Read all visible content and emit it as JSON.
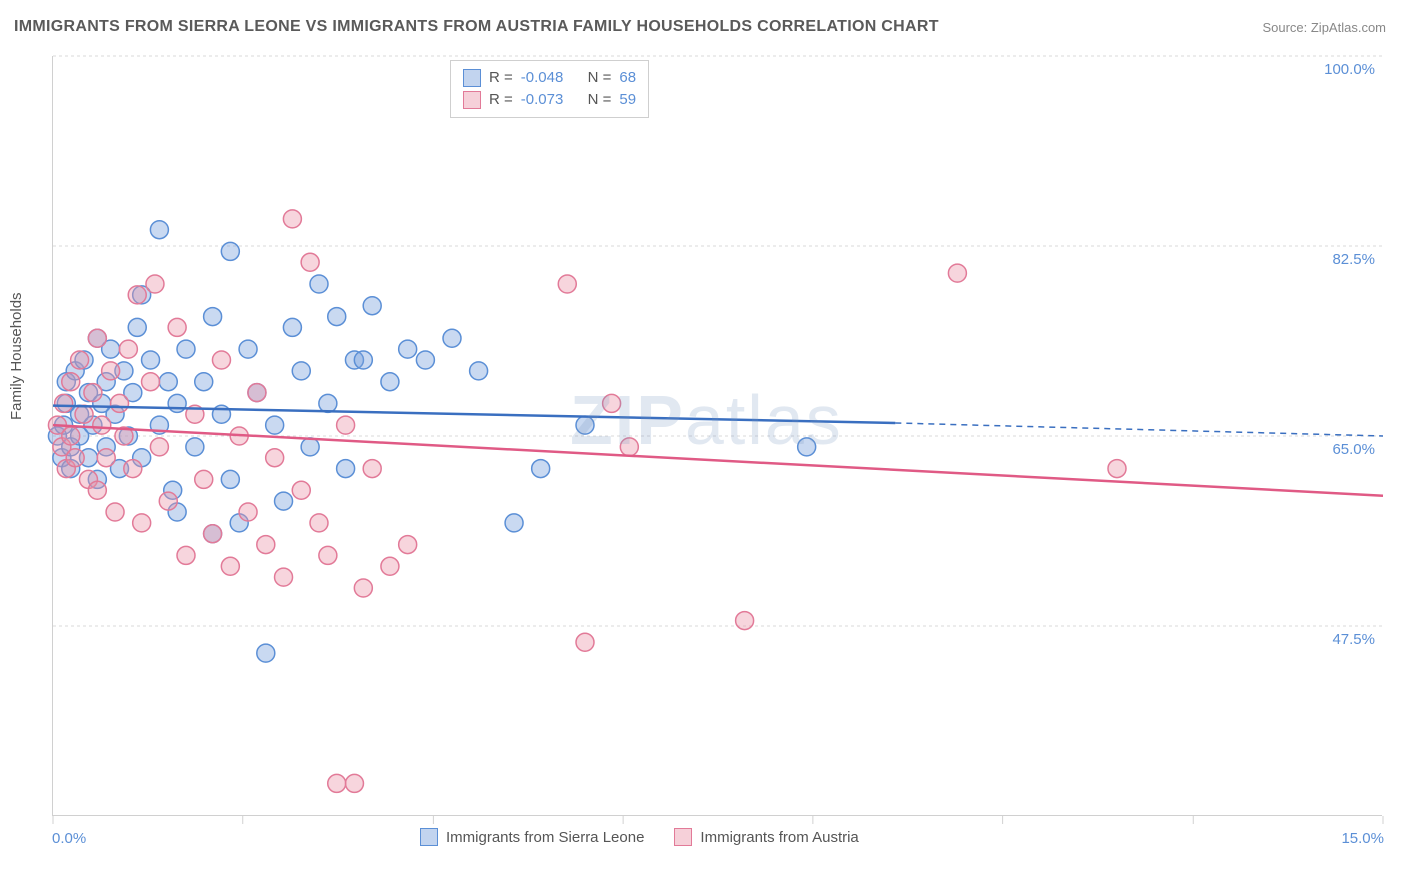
{
  "title": "IMMIGRANTS FROM SIERRA LEONE VS IMMIGRANTS FROM AUSTRIA FAMILY HOUSEHOLDS CORRELATION CHART",
  "source": "Source: ZipAtlas.com",
  "watermark_a": "ZIP",
  "watermark_b": "atlas",
  "y_axis_title": "Family Households",
  "chart": {
    "type": "scatter",
    "background_color": "#ffffff",
    "grid_color": "#d8d8d8",
    "axis_color": "#d0d0d0",
    "tick_label_color": "#5b8fd6",
    "xlim": [
      0.0,
      15.0
    ],
    "ylim": [
      30.0,
      100.0
    ],
    "x_tick_positions": [
      0,
      2.14,
      4.29,
      6.43,
      8.57,
      10.71,
      12.86,
      15.0
    ],
    "y_ticks": [
      {
        "v": 47.5,
        "label": "47.5%"
      },
      {
        "v": 65.0,
        "label": "65.0%"
      },
      {
        "v": 82.5,
        "label": "82.5%"
      },
      {
        "v": 100.0,
        "label": "100.0%"
      }
    ],
    "x_left_label": "0.0%",
    "x_right_label": "15.0%",
    "marker_radius": 9,
    "marker_stroke_width": 1.5,
    "line_width": 2.5,
    "series": [
      {
        "name": "Immigrants from Sierra Leone",
        "color_fill": "rgba(120,160,220,0.40)",
        "color_stroke": "#5b8fd6",
        "line_color": "#3a6fc0",
        "r": -0.048,
        "n": 68,
        "regression": {
          "x1": 0.0,
          "y1": 67.8,
          "x2": 9.5,
          "y2": 66.2,
          "dash_from_x": 9.5,
          "dash_to_x": 15.0,
          "dash_y2": 65.0
        },
        "points": [
          [
            0.05,
            65
          ],
          [
            0.1,
            63
          ],
          [
            0.12,
            66
          ],
          [
            0.15,
            68
          ],
          [
            0.15,
            70
          ],
          [
            0.2,
            64
          ],
          [
            0.2,
            62
          ],
          [
            0.25,
            71
          ],
          [
            0.3,
            67
          ],
          [
            0.3,
            65
          ],
          [
            0.35,
            72
          ],
          [
            0.4,
            69
          ],
          [
            0.4,
            63
          ],
          [
            0.45,
            66
          ],
          [
            0.5,
            74
          ],
          [
            0.5,
            61
          ],
          [
            0.55,
            68
          ],
          [
            0.6,
            70
          ],
          [
            0.6,
            64
          ],
          [
            0.65,
            73
          ],
          [
            0.7,
            67
          ],
          [
            0.75,
            62
          ],
          [
            0.8,
            71
          ],
          [
            0.85,
            65
          ],
          [
            0.9,
            69
          ],
          [
            0.95,
            75
          ],
          [
            1.0,
            63
          ],
          [
            1.0,
            78
          ],
          [
            1.1,
            72
          ],
          [
            1.2,
            66
          ],
          [
            1.2,
            84
          ],
          [
            1.3,
            70
          ],
          [
            1.35,
            60
          ],
          [
            1.4,
            58
          ],
          [
            1.4,
            68
          ],
          [
            1.5,
            73
          ],
          [
            1.6,
            64
          ],
          [
            1.7,
            70
          ],
          [
            1.8,
            56
          ],
          [
            1.8,
            76
          ],
          [
            1.9,
            67
          ],
          [
            2.0,
            82
          ],
          [
            2.0,
            61
          ],
          [
            2.1,
            57
          ],
          [
            2.2,
            73
          ],
          [
            2.3,
            69
          ],
          [
            2.4,
            45
          ],
          [
            2.5,
            66
          ],
          [
            2.6,
            59
          ],
          [
            2.7,
            75
          ],
          [
            2.8,
            71
          ],
          [
            2.9,
            64
          ],
          [
            3.0,
            79
          ],
          [
            3.1,
            68
          ],
          [
            3.2,
            76
          ],
          [
            3.3,
            62
          ],
          [
            3.4,
            72
          ],
          [
            3.5,
            72
          ],
          [
            3.6,
            77
          ],
          [
            3.8,
            70
          ],
          [
            4.0,
            73
          ],
          [
            4.2,
            72
          ],
          [
            4.5,
            74
          ],
          [
            4.8,
            71
          ],
          [
            5.2,
            57
          ],
          [
            5.5,
            62
          ],
          [
            6.0,
            66
          ],
          [
            8.5,
            64
          ]
        ]
      },
      {
        "name": "Immigrants from Austria",
        "color_fill": "rgba(235,150,170,0.40)",
        "color_stroke": "#e27a98",
        "line_color": "#e05a85",
        "r": -0.073,
        "n": 59,
        "regression": {
          "x1": 0.0,
          "y1": 66.0,
          "x2": 15.0,
          "y2": 59.5
        },
        "points": [
          [
            0.05,
            66
          ],
          [
            0.1,
            64
          ],
          [
            0.12,
            68
          ],
          [
            0.15,
            62
          ],
          [
            0.2,
            70
          ],
          [
            0.2,
            65
          ],
          [
            0.25,
            63
          ],
          [
            0.3,
            72
          ],
          [
            0.35,
            67
          ],
          [
            0.4,
            61
          ],
          [
            0.45,
            69
          ],
          [
            0.5,
            74
          ],
          [
            0.5,
            60
          ],
          [
            0.55,
            66
          ],
          [
            0.6,
            63
          ],
          [
            0.65,
            71
          ],
          [
            0.7,
            58
          ],
          [
            0.75,
            68
          ],
          [
            0.8,
            65
          ],
          [
            0.85,
            73
          ],
          [
            0.9,
            62
          ],
          [
            0.95,
            78
          ],
          [
            1.0,
            57
          ],
          [
            1.1,
            70
          ],
          [
            1.15,
            79
          ],
          [
            1.2,
            64
          ],
          [
            1.3,
            59
          ],
          [
            1.4,
            75
          ],
          [
            1.5,
            54
          ],
          [
            1.6,
            67
          ],
          [
            1.7,
            61
          ],
          [
            1.8,
            56
          ],
          [
            1.9,
            72
          ],
          [
            2.0,
            53
          ],
          [
            2.1,
            65
          ],
          [
            2.2,
            58
          ],
          [
            2.3,
            69
          ],
          [
            2.4,
            55
          ],
          [
            2.5,
            63
          ],
          [
            2.6,
            52
          ],
          [
            2.7,
            85
          ],
          [
            2.8,
            60
          ],
          [
            2.9,
            81
          ],
          [
            3.0,
            57
          ],
          [
            3.1,
            54
          ],
          [
            3.2,
            33
          ],
          [
            3.3,
            66
          ],
          [
            3.4,
            33
          ],
          [
            3.5,
            51
          ],
          [
            3.6,
            62
          ],
          [
            3.8,
            53
          ],
          [
            4.0,
            55
          ],
          [
            5.8,
            79
          ],
          [
            6.0,
            46
          ],
          [
            6.3,
            68
          ],
          [
            6.5,
            64
          ],
          [
            7.8,
            48
          ],
          [
            10.2,
            80
          ],
          [
            12.0,
            62
          ]
        ]
      }
    ]
  },
  "legend_top": {
    "r_label": "R =",
    "n_label": "N ="
  },
  "title_fontsize": 16,
  "label_fontsize": 15
}
